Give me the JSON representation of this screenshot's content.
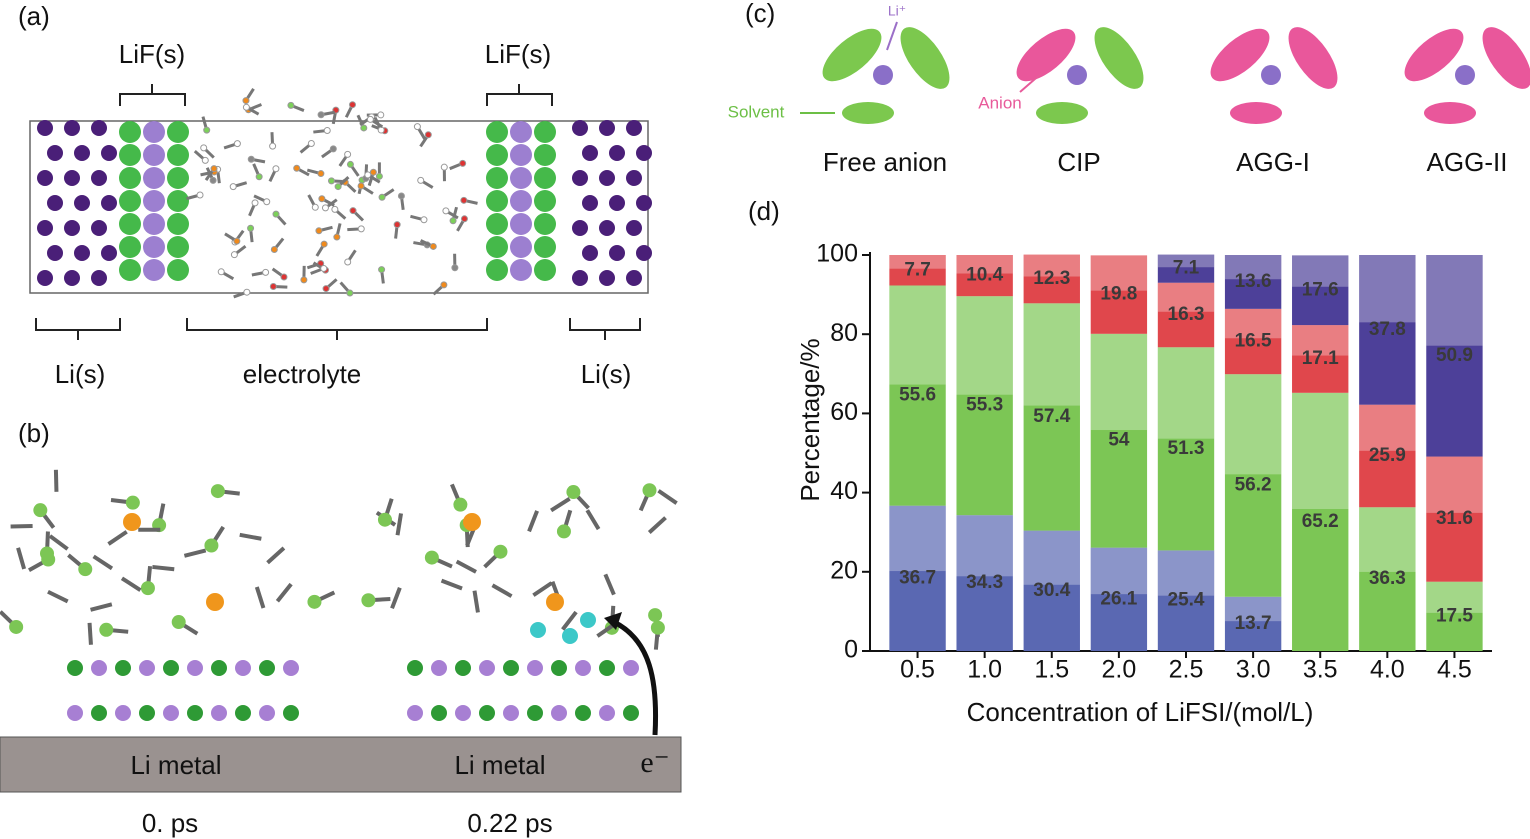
{
  "panel_a": {
    "label": "(a)",
    "lif_left": "LiF(s)",
    "lif_right": "LiF(s)",
    "li_left": "Li(s)",
    "electrolyte": "electrolyte",
    "li_right": "Li(s)"
  },
  "panel_b": {
    "label": "(b)",
    "metal_left": "Li metal",
    "metal_right": "Li metal",
    "electron": "e⁻",
    "time_left": "0. ps",
    "time_right": "0.22 ps"
  },
  "panel_c": {
    "label": "(c)",
    "li": "Li⁺",
    "solvent": "Solvent",
    "anion": "Anion"
  },
  "panel_d": {
    "label": "(d)"
  },
  "chart_data": {
    "type": "stacked_bar",
    "x_label": "Concentration of LiFSI/(mol/L)",
    "y_label": "Percentage/%",
    "categories": [
      "0.5",
      "1.0",
      "1.5",
      "2.0",
      "2.5",
      "3.0",
      "3.5",
      "4.0",
      "4.5"
    ],
    "series": [
      {
        "name": "Free anion",
        "color": "#5a68b2",
        "values": [
          36.7,
          34.3,
          30.4,
          26.1,
          25.4,
          13.7,
          null,
          null,
          null
        ]
      },
      {
        "name": "CIP",
        "color": "#7cc655",
        "values": [
          55.6,
          55.3,
          57.4,
          54,
          51.3,
          56.2,
          65.2,
          36.3,
          17.5
        ]
      },
      {
        "name": "AGG-I",
        "color": "#e0474c",
        "values": [
          7.7,
          10.4,
          12.3,
          19.8,
          16.3,
          16.5,
          17.1,
          25.9,
          31.6
        ]
      },
      {
        "name": "AGG-II",
        "color": "#4d4099",
        "values": [
          null,
          null,
          null,
          null,
          7.1,
          13.6,
          17.6,
          37.8,
          50.9
        ]
      }
    ],
    "ylim": [
      0,
      100
    ],
    "yticks": [
      0,
      20,
      40,
      60,
      80,
      100
    ]
  }
}
